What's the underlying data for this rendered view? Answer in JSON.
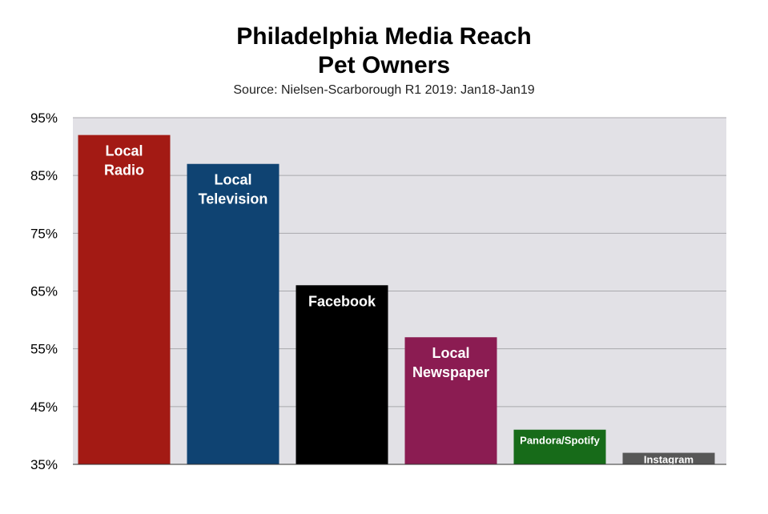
{
  "chart_data": {
    "type": "bar",
    "title": [
      "Philadelphia Media Reach",
      "Pet Owners"
    ],
    "subtitle": "Source: Nielsen-Scarborough R1 2019: Jan18-Jan19",
    "categories": [
      [
        "Local",
        "Radio"
      ],
      [
        "Local",
        "Television"
      ],
      [
        "Facebook"
      ],
      [
        "Local",
        "Newspaper"
      ],
      [
        "Pandora/Spotify"
      ],
      [
        "Instagram"
      ]
    ],
    "values": [
      92,
      87,
      66,
      57,
      41,
      37
    ],
    "colors": [
      "#a31a14",
      "#0f4372",
      "#000000",
      "#8b1c52",
      "#176b19",
      "#575757"
    ],
    "ylim": [
      35,
      95
    ],
    "yticks": [
      95,
      85,
      75,
      65,
      55,
      45,
      35
    ],
    "ytick_labels": [
      "95%",
      "85%",
      "75%",
      "65%",
      "55%",
      "45%",
      "35%"
    ],
    "grid": true,
    "plot_background": "#e2e1e6"
  }
}
